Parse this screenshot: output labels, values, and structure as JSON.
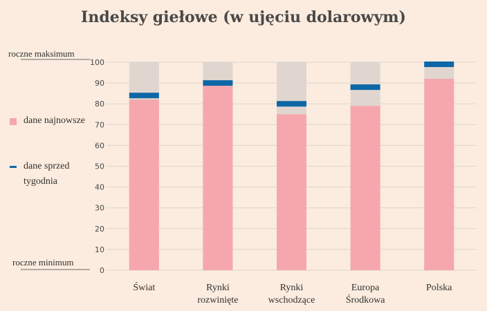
{
  "title": "Indeksy giełowe (w ujęciu dolarowym)",
  "axis_notes": {
    "max": "roczne maksimum",
    "min": "roczne minimum"
  },
  "legend": {
    "latest": "dane najnowsze",
    "week_ago": "dane sprzed tygodnia"
  },
  "colors": {
    "background": "#fbecdf",
    "latest": "#f6a7ae",
    "range": "#e0d6cf",
    "week_ago": "#0d67a6",
    "grid": "#ddd3cb"
  },
  "chart_data": {
    "type": "bar",
    "title": "Indeksy giełowe (w ujęciu dolarowym)",
    "categories": [
      "Świat",
      "Rynki rozwinięte",
      "Rynki wschodzące",
      "Europa Środkowa",
      "Polska"
    ],
    "category_lines": [
      [
        "Świat"
      ],
      [
        "Rynki",
        "rozwinięte"
      ],
      [
        "Rynki",
        "wschodzące"
      ],
      [
        "Europa",
        "Środkowa"
      ],
      [
        "Polska"
      ]
    ],
    "series": [
      {
        "name": "dane najnowsze",
        "values": [
          82,
          89,
          75,
          79,
          92
        ]
      },
      {
        "name": "dane sprzed tygodnia",
        "values": [
          84,
          90,
          80,
          88,
          99
        ]
      }
    ],
    "range_max": 100,
    "ylim": [
      0,
      100
    ],
    "yticks": [
      0,
      10,
      20,
      30,
      40,
      50,
      60,
      70,
      80,
      90,
      100
    ],
    "grid": true,
    "legend_position": "left"
  }
}
